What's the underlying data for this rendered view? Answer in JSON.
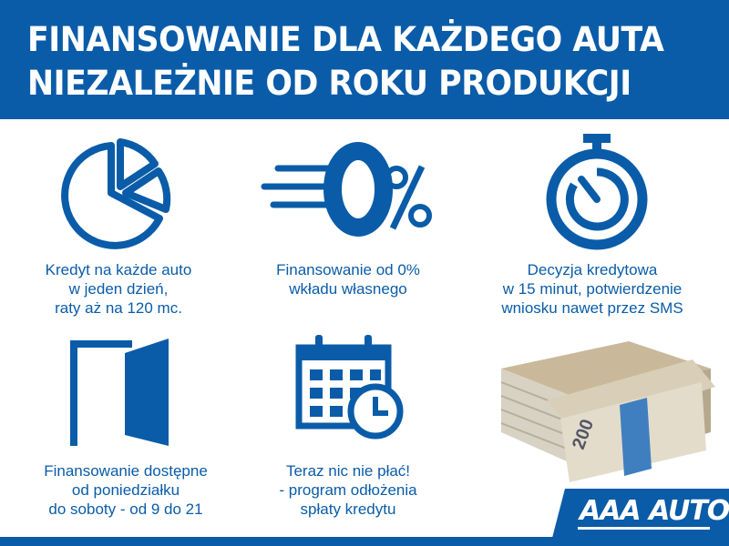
{
  "header": {
    "line1": "FINANSOWANIE DLA KAŻDEGO AUTA",
    "line2": "NIEZALEŻNIE OD ROKU PRODUKCJI"
  },
  "features": [
    {
      "icon": "pie-chart-icon",
      "lines": [
        "Kredyt na każde auto",
        "w jeden dzień,",
        "raty aż na 120 mc."
      ]
    },
    {
      "icon": "zero-percent-icon",
      "icon_text": "0%",
      "lines": [
        "Finansowanie od 0%",
        "wkładu własnego"
      ]
    },
    {
      "icon": "stopwatch-icon",
      "lines": [
        "Decyzja kredytowa",
        "w 15 minut, potwierdzenie",
        "wniosku nawet przez SMS"
      ]
    },
    {
      "icon": "open-door-icon",
      "lines": [
        "Finansowanie dostępne",
        "od poniedziałku",
        "do soboty - od 9 do 21"
      ]
    },
    {
      "icon": "calendar-clock-icon",
      "lines": [
        "Teraz nic nie płać!",
        "- program odłożenia",
        "spłaty kredytu"
      ]
    }
  ],
  "logo": {
    "text": "AAA AUTO"
  },
  "colors": {
    "brand_blue": "#0a5ca8"
  }
}
